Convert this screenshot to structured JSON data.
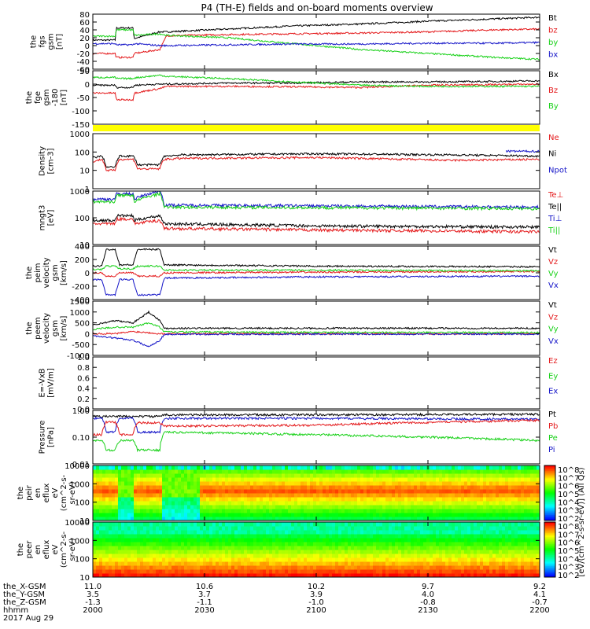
{
  "title": "P4 (TH-E) fields and on-board moments overview",
  "colors": {
    "black": "#000000",
    "red": "#e41a1c",
    "green": "#19d119",
    "blue": "#1414c8",
    "yellow": "#ffff00"
  },
  "chart_data": [
    {
      "type": "line",
      "panel": "fgs",
      "ylabel": [
        "the",
        "fgs",
        "gsm",
        "[nT]"
      ],
      "yticks": [
        "80",
        "60",
        "40",
        "20",
        "0",
        "-20",
        "-40",
        "-60"
      ],
      "ylim": [
        -60,
        80
      ],
      "legend": [
        "Bt",
        "bz",
        "by",
        "bx"
      ],
      "series": [
        {
          "name": "Bt",
          "color": "black",
          "x": [
            0,
            10,
            10.5,
            18,
            18.5,
            30,
            33,
            60,
            90,
            120,
            150,
            180,
            200
          ],
          "y": [
            14,
            14,
            45,
            45,
            18,
            35,
            35,
            42,
            50,
            55,
            62,
            68,
            72
          ]
        },
        {
          "name": "bz",
          "color": "red",
          "x": [
            0,
            10,
            10.5,
            18,
            18.5,
            30,
            33,
            60,
            90,
            120,
            150,
            180,
            200
          ],
          "y": [
            -20,
            -20,
            -30,
            -30,
            -20,
            -10,
            25,
            28,
            30,
            32,
            35,
            40,
            42
          ]
        },
        {
          "name": "by",
          "color": "green",
          "x": [
            0,
            10,
            10.5,
            18,
            18.5,
            30,
            33,
            60,
            90,
            120,
            150,
            180,
            200
          ],
          "y": [
            24,
            24,
            40,
            40,
            26,
            30,
            26,
            20,
            5,
            -10,
            -20,
            -30,
            -35
          ]
        },
        {
          "name": "bx",
          "color": "blue",
          "x": [
            0,
            10,
            10.5,
            18,
            18.5,
            30,
            33,
            60,
            90,
            120,
            150,
            180,
            200
          ],
          "y": [
            5,
            5,
            2,
            2,
            5,
            0,
            0,
            2,
            4,
            4,
            6,
            6,
            8
          ]
        }
      ]
    },
    {
      "type": "line",
      "panel": "fge",
      "ylabel": [
        "the",
        "fge",
        "gsm",
        "-180",
        "[nT]"
      ],
      "yticks": [
        "50",
        "0",
        "-50",
        "-100",
        "-150"
      ],
      "ylim": [
        -180,
        60
      ],
      "legend": [
        "Bx",
        "Bz",
        "By"
      ],
      "series": [
        {
          "name": "Bx",
          "color": "black",
          "x": [
            0,
            10,
            10.5,
            18,
            18.5,
            30,
            33,
            60,
            90,
            120,
            150,
            180,
            200
          ],
          "y": [
            -5,
            -5,
            -15,
            -15,
            -5,
            0,
            0,
            5,
            5,
            10,
            10,
            12,
            15
          ]
        },
        {
          "name": "Bz",
          "color": "red",
          "x": [
            0,
            10,
            10.5,
            18,
            18.5,
            30,
            33,
            60,
            90,
            120,
            150,
            180,
            200
          ],
          "y": [
            -40,
            -40,
            -70,
            -70,
            -40,
            -20,
            -10,
            -10,
            -12,
            -15,
            -5,
            -2,
            0
          ]
        },
        {
          "name": "By",
          "color": "green",
          "x": [
            0,
            10,
            10.5,
            18,
            18.5,
            30,
            33,
            60,
            90,
            120,
            150,
            180,
            200
          ],
          "y": [
            30,
            30,
            25,
            25,
            28,
            40,
            35,
            25,
            10,
            -5,
            -10,
            -10,
            -10
          ]
        }
      ]
    },
    {
      "type": "line",
      "panel": "density",
      "ylabel": [
        "Density",
        "[cm-3]"
      ],
      "yticks": [
        "1000",
        "100",
        "10",
        "1"
      ],
      "yscale": "log",
      "ylim": [
        1,
        1000
      ],
      "legend": [
        "Ne",
        "Ni",
        "Npot"
      ],
      "series": [
        {
          "name": "Ni",
          "color": "black",
          "x": [
            0,
            4,
            6,
            10,
            12,
            18,
            20,
            30,
            32,
            40,
            100,
            160,
            200
          ],
          "y": [
            50,
            60,
            15,
            15,
            60,
            60,
            20,
            20,
            60,
            70,
            80,
            70,
            60
          ]
        },
        {
          "name": "Ne",
          "color": "red",
          "x": [
            0,
            4,
            6,
            10,
            12,
            18,
            20,
            30,
            32,
            40,
            100,
            160,
            200
          ],
          "y": [
            30,
            40,
            10,
            10,
            40,
            40,
            12,
            12,
            40,
            45,
            50,
            35,
            40
          ]
        },
        {
          "name": "Npot",
          "color": "blue",
          "x": [
            185,
            200
          ],
          "y": [
            110,
            110
          ]
        }
      ]
    },
    {
      "type": "line",
      "panel": "temperature",
      "ylabel": [
        "mngt3",
        "[eV]"
      ],
      "yticks": [
        "1000",
        "100",
        "10"
      ],
      "yscale": "log",
      "ylim": [
        10,
        1000
      ],
      "legend": [
        "Te⊥",
        "Te||",
        "Ti⊥",
        "Ti||"
      ],
      "series": [
        {
          "name": "Ti⊥",
          "color": "blue",
          "x": [
            0,
            10,
            10.5,
            18,
            18.5,
            30,
            32,
            100,
            200
          ],
          "y": [
            500,
            500,
            800,
            800,
            500,
            1000,
            300,
            280,
            250
          ]
        },
        {
          "name": "Ti||",
          "color": "green",
          "x": [
            0,
            10,
            10.5,
            18,
            18.5,
            30,
            32,
            100,
            200
          ],
          "y": [
            400,
            400,
            700,
            700,
            400,
            800,
            250,
            240,
            220
          ]
        },
        {
          "name": "Te||",
          "color": "black",
          "x": [
            0,
            10,
            10.5,
            18,
            18.5,
            30,
            32,
            100,
            200
          ],
          "y": [
            80,
            80,
            120,
            120,
            80,
            120,
            60,
            50,
            45
          ]
        },
        {
          "name": "Te⊥",
          "color": "red",
          "x": [
            0,
            10,
            10.5,
            18,
            18.5,
            30,
            32,
            100,
            200
          ],
          "y": [
            60,
            60,
            90,
            90,
            60,
            80,
            40,
            35,
            30
          ]
        }
      ]
    },
    {
      "type": "line",
      "panel": "peim_velocity",
      "ylabel": [
        "the",
        "peim",
        "velocity",
        "gsm",
        "[km/s]"
      ],
      "yticks": [
        "400",
        "200",
        "0",
        "-200",
        "-400"
      ],
      "ylim": [
        -400,
        400
      ],
      "legend": [
        "Vt",
        "Vz",
        "Vy",
        "Vx"
      ],
      "series": [
        {
          "name": "Vt",
          "color": "black",
          "x": [
            0,
            4,
            6,
            10,
            12,
            18,
            20,
            30,
            32,
            100,
            200
          ],
          "y": [
            100,
            100,
            350,
            350,
            120,
            120,
            350,
            350,
            120,
            100,
            90
          ]
        },
        {
          "name": "Vz",
          "color": "red",
          "x": [
            0,
            4,
            6,
            10,
            12,
            18,
            20,
            30,
            32,
            100,
            200
          ],
          "y": [
            0,
            0,
            -50,
            -50,
            0,
            0,
            -50,
            -50,
            0,
            10,
            20
          ]
        },
        {
          "name": "Vy",
          "color": "green",
          "x": [
            0,
            4,
            6,
            10,
            12,
            18,
            20,
            30,
            32,
            100,
            200
          ],
          "y": [
            50,
            50,
            100,
            100,
            60,
            60,
            100,
            100,
            40,
            40,
            30
          ]
        },
        {
          "name": "Vx",
          "color": "blue",
          "x": [
            0,
            4,
            6,
            10,
            12,
            18,
            20,
            30,
            32,
            100,
            200
          ],
          "y": [
            -100,
            -100,
            -330,
            -330,
            -100,
            -100,
            -330,
            -330,
            -80,
            -60,
            -50
          ]
        }
      ]
    },
    {
      "type": "line",
      "panel": "peem_velocity",
      "ylabel": [
        "the",
        "peem",
        "velocity",
        "gsm",
        "[km/s]"
      ],
      "yticks": [
        "1500",
        "1000",
        "500",
        "0",
        "-500",
        "-1000"
      ],
      "ylim": [
        -1000,
        1500
      ],
      "legend": [
        "Vt",
        "Vz",
        "Vy",
        "Vx"
      ],
      "series": [
        {
          "name": "Vt",
          "color": "black",
          "x": [
            0,
            10,
            18,
            25,
            30,
            32,
            100,
            200
          ],
          "y": [
            400,
            600,
            500,
            1000,
            600,
            250,
            250,
            250
          ]
        },
        {
          "name": "Vz",
          "color": "red",
          "x": [
            0,
            10,
            18,
            25,
            30,
            32,
            100,
            200
          ],
          "y": [
            0,
            0,
            100,
            50,
            0,
            0,
            0,
            0
          ]
        },
        {
          "name": "Vy",
          "color": "green",
          "x": [
            0,
            10,
            18,
            25,
            30,
            32,
            100,
            200
          ],
          "y": [
            200,
            300,
            300,
            500,
            300,
            80,
            60,
            50
          ]
        },
        {
          "name": "Vx",
          "color": "blue",
          "x": [
            0,
            10,
            18,
            25,
            30,
            32,
            100,
            200
          ],
          "y": [
            -100,
            -200,
            -300,
            -600,
            -300,
            -30,
            -20,
            -20
          ]
        }
      ]
    },
    {
      "type": "line",
      "panel": "efield",
      "ylabel": [
        "E=-VxB",
        "[mV/m]"
      ],
      "yticks": [
        "1.0",
        "0.8",
        "0.6",
        "0.4",
        "0.2",
        "0.0"
      ],
      "ylim": [
        0,
        1
      ],
      "legend": [
        "Ez",
        "Ey",
        "Ex"
      ],
      "series": []
    },
    {
      "type": "line",
      "panel": "pressure",
      "ylabel": [
        "Pressure",
        "[nPa]"
      ],
      "yticks": [
        "1.00",
        "0.10",
        "0.01"
      ],
      "yscale": "log",
      "ylim": [
        0.01,
        5
      ],
      "legend": [
        "Pt",
        "Pb",
        "Pe",
        "Pi"
      ],
      "series": [
        {
          "name": "Pt",
          "color": "black",
          "x": [
            0,
            4,
            6,
            10,
            12,
            18,
            20,
            30,
            32,
            100,
            200
          ],
          "y": [
            2.5,
            2.5,
            2.5,
            2.5,
            2.5,
            2.5,
            2.5,
            2.5,
            3,
            3,
            3.2
          ]
        },
        {
          "name": "Pi",
          "color": "blue",
          "x": [
            0,
            4,
            6,
            10,
            12,
            18,
            20,
            30,
            32,
            100,
            200
          ],
          "y": [
            2,
            2,
            0.4,
            0.4,
            2,
            2,
            0.4,
            0.4,
            2,
            2,
            1.8
          ]
        },
        {
          "name": "Pb",
          "color": "red",
          "x": [
            0,
            4,
            6,
            10,
            12,
            18,
            20,
            30,
            32,
            100,
            200
          ],
          "y": [
            0.3,
            0.3,
            1.3,
            1.3,
            0.3,
            0.3,
            1.2,
            1.2,
            0.8,
            0.9,
            1.6
          ]
        },
        {
          "name": "Pe",
          "color": "green",
          "x": [
            0,
            4,
            6,
            10,
            12,
            18,
            20,
            30,
            32,
            100,
            200
          ],
          "y": [
            0.15,
            0.15,
            0.05,
            0.05,
            0.15,
            0.15,
            0.05,
            0.05,
            0.4,
            0.3,
            0.15
          ]
        }
      ]
    },
    {
      "type": "heatmap",
      "panel": "peir_en_eflux",
      "ylabel": [
        "the",
        "peir",
        "en",
        "eflux",
        "eV",
        "(cm^2-s-",
        "sr-eV)"
      ],
      "yticks": [
        "10000",
        "1000",
        "100",
        "10"
      ],
      "yscale": "log"
    },
    {
      "type": "heatmap",
      "panel": "peer_en_eflux",
      "ylabel": [
        "the",
        "peer",
        "en",
        "eflux",
        "eV",
        "(cm^2-s-",
        "sr-eV)"
      ],
      "yticks": [
        "10000",
        "1000",
        "100",
        "10"
      ],
      "yscale": "log"
    }
  ],
  "colorbars": [
    {
      "label": "[eV/(cm^2-s-sr-eV)] (All Qs)",
      "ticks": [
        "10^8",
        "10^7",
        "10^6",
        "10^5",
        "10^4",
        "10^3",
        "10^2"
      ]
    },
    {
      "label": "[eV/(cm^2-s-sr-eV)] (All Qs)",
      "ticks": [
        "10^8",
        "10^7",
        "10^6",
        "10^5",
        "10^4",
        "10^3",
        "10^2"
      ]
    }
  ],
  "xaxis": {
    "rows": [
      {
        "label": "the_X-GSM",
        "values": [
          "11.0",
          "10.6",
          "10.2",
          "9.7",
          "9.2"
        ]
      },
      {
        "label": "the_Y-GSM",
        "values": [
          "3.5",
          "3.7",
          "3.9",
          "4.0",
          "4.1"
        ]
      },
      {
        "label": "the_Z-GSM",
        "values": [
          "-1.3",
          "-1.1",
          "-1.0",
          "-0.8",
          "-0.7"
        ]
      },
      {
        "label": "hhmm",
        "values": [
          "2000",
          "2030",
          "2100",
          "2130",
          "2200"
        ]
      }
    ],
    "date": "2017 Aug 29"
  }
}
